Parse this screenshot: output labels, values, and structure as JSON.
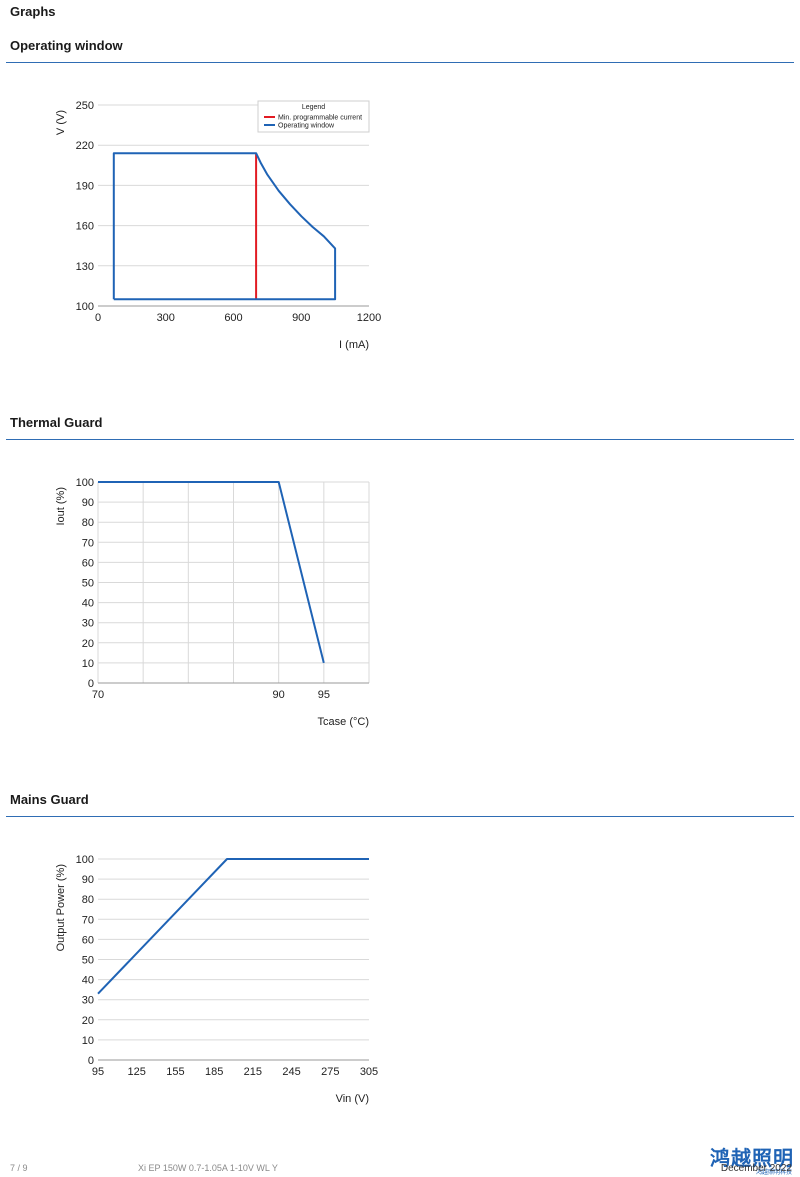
{
  "page": {
    "heading": "Graphs",
    "footer": {
      "page_number": "7 / 9",
      "product": "Xi EP 150W 0.7-1.05A 1-10V WL Y",
      "date": "December 2022"
    },
    "logo": {
      "text": "鸿越照明",
      "subtext": "鸿越照明科技"
    }
  },
  "sections": [
    {
      "title": "Operating window"
    },
    {
      "title": "Thermal Guard"
    },
    {
      "title": "Mains Guard"
    }
  ],
  "colors": {
    "accent_rule": "#2f6db4",
    "series_blue": "#1f63b5",
    "series_red": "#e21b23",
    "grid": "#d9d9d9"
  },
  "chart_data": [
    {
      "type": "line",
      "title": "Operating window",
      "xlabel": "I (mA)",
      "ylabel": "V (V)",
      "xlim": [
        0,
        1200
      ],
      "ylim": [
        100,
        250
      ],
      "x_ticks": [
        "0",
        "300",
        "600",
        "900",
        "1200"
      ],
      "y_ticks": [
        "100",
        "130",
        "160",
        "190",
        "220",
        "250"
      ],
      "grid": "horizontal",
      "legend": {
        "title": "Legend",
        "placement": "top-right",
        "entries": [
          "Min. programmable current",
          "Operating window"
        ]
      },
      "series": [
        {
          "name": "Min. programmable current",
          "color": "#e21b23",
          "x": [
            700,
            700
          ],
          "y": [
            105,
            214
          ]
        },
        {
          "name": "Operating window",
          "color": "#1f63b5",
          "x": [
            70,
            70,
            700,
            720,
            750,
            800,
            850,
            900,
            950,
            1000,
            1050,
            1050,
            70
          ],
          "y": [
            105,
            214,
            214,
            207,
            198,
            186,
            176,
            167,
            159,
            152,
            143,
            105,
            105
          ]
        }
      ]
    },
    {
      "type": "line",
      "title": "Thermal Guard",
      "xlabel": "Tcase (°C)",
      "ylabel": "Iout (%)",
      "xlim": [
        70,
        100
      ],
      "ylim": [
        0,
        100
      ],
      "x_ticks": [
        "70",
        "90",
        "95"
      ],
      "y_ticks": [
        "0",
        "10",
        "20",
        "30",
        "40",
        "50",
        "60",
        "70",
        "80",
        "90",
        "100"
      ],
      "grid": "both",
      "series": [
        {
          "color": "#1f63b5",
          "x": [
            70,
            90,
            95
          ],
          "y": [
            100,
            100,
            10
          ]
        }
      ]
    },
    {
      "type": "line",
      "title": "Mains Guard",
      "xlabel": "Vin (V)",
      "ylabel": "Output Power (%)",
      "xlim": [
        95,
        305
      ],
      "ylim": [
        0,
        100
      ],
      "x_ticks": [
        "95",
        "125",
        "155",
        "185",
        "215",
        "245",
        "275",
        "305"
      ],
      "y_ticks": [
        "0",
        "10",
        "20",
        "30",
        "40",
        "50",
        "60",
        "70",
        "80",
        "90",
        "100"
      ],
      "grid": "horizontal",
      "series": [
        {
          "color": "#1f63b5",
          "x": [
            95,
            195,
            305
          ],
          "y": [
            33,
            100,
            100
          ]
        }
      ]
    }
  ]
}
